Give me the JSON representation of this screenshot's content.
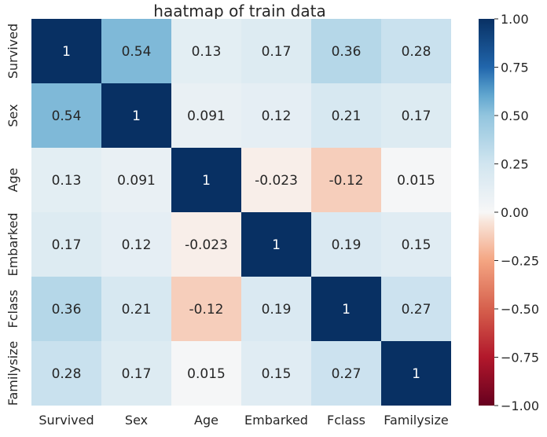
{
  "chart_data": {
    "type": "heatmap",
    "title": "haatmap of train data",
    "rows": [
      "Survived",
      "Sex",
      "Age",
      "Embarked",
      "Fclass",
      "Familysize"
    ],
    "columns": [
      "Survived",
      "Sex",
      "Age",
      "Embarked",
      "Fclass",
      "Familysize"
    ],
    "values": [
      [
        1,
        0.54,
        0.13,
        0.17,
        0.36,
        0.28
      ],
      [
        0.54,
        1,
        0.091,
        0.12,
        0.21,
        0.17
      ],
      [
        0.13,
        0.091,
        1,
        -0.023,
        -0.12,
        0.015
      ],
      [
        0.17,
        0.12,
        -0.023,
        1,
        0.19,
        0.15
      ],
      [
        0.36,
        0.21,
        -0.12,
        0.19,
        1,
        0.27
      ],
      [
        0.28,
        0.17,
        0.015,
        0.15,
        0.27,
        1
      ]
    ],
    "labels": [
      [
        "1",
        "0.54",
        "0.13",
        "0.17",
        "0.36",
        "0.28"
      ],
      [
        "0.54",
        "1",
        "0.091",
        "0.12",
        "0.21",
        "0.17"
      ],
      [
        "0.13",
        "0.091",
        "1",
        "-0.023",
        "-0.12",
        "0.015"
      ],
      [
        "0.17",
        "0.12",
        "-0.023",
        "1",
        "0.19",
        "0.15"
      ],
      [
        "0.36",
        "0.21",
        "-0.12",
        "0.19",
        "1",
        "0.27"
      ],
      [
        "0.28",
        "0.17",
        "0.015",
        "0.15",
        "0.27",
        "1"
      ]
    ],
    "colormap": "RdBu",
    "vmin": -1,
    "vmax": 1,
    "colorbar_ticks": [
      "1.00",
      "0.75",
      "0.50",
      "0.25",
      "0.00",
      "−0.25",
      "−0.50",
      "−0.75",
      "−1.00"
    ],
    "colorbar_tick_values": [
      1,
      0.75,
      0.5,
      0.25,
      0,
      -0.25,
      -0.5,
      -0.75,
      -1
    ]
  }
}
